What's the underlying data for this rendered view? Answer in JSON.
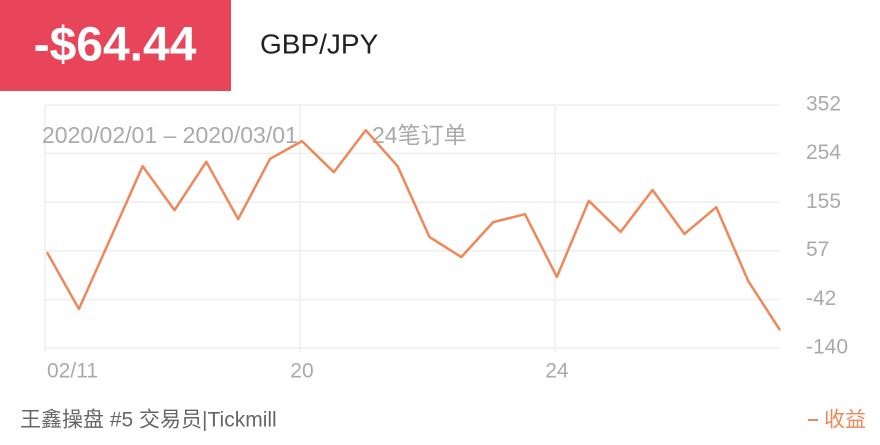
{
  "header": {
    "pnl": "-$64.44",
    "pair": "GBP/JPY"
  },
  "footer": {
    "trader": "王鑫操盘 #5 交易员|Tickmill"
  },
  "chart_data": {
    "type": "line",
    "subtitle": "2020/02/01 – 2020/03/01",
    "count_label": "24笔订单",
    "categories": [
      "02/11",
      null,
      null,
      null,
      null,
      null,
      null,
      null,
      "20",
      null,
      null,
      null,
      null,
      null,
      null,
      null,
      "24",
      null,
      null,
      null,
      null,
      null,
      null,
      null
    ],
    "series": [
      {
        "name": "收益",
        "color": "#f0875a",
        "values": [
          54,
          -61,
          83,
          228,
          139,
          237,
          121,
          243,
          279,
          216,
          301,
          228,
          85,
          44,
          115,
          131,
          4,
          158,
          95,
          180,
          91,
          145,
          -4,
          -104
        ]
      }
    ],
    "ylim": [
      -140,
      352
    ],
    "yticks": [
      352,
      254,
      155,
      57,
      -42,
      -140
    ],
    "grid": true
  }
}
